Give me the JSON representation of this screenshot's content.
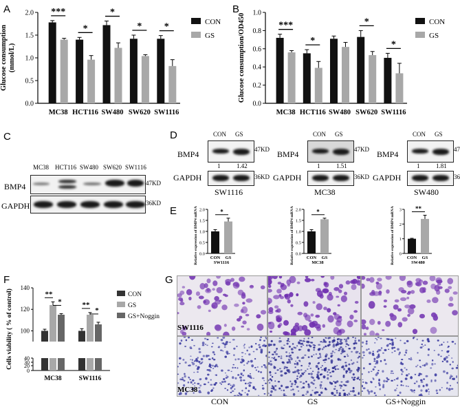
{
  "panels": {
    "A": {
      "label": "A"
    },
    "B": {
      "label": "B"
    },
    "C": {
      "label": "C"
    },
    "D": {
      "label": "D"
    },
    "E": {
      "label": "E"
    },
    "F": {
      "label": "F"
    },
    "G": {
      "label": "G"
    }
  },
  "chart_data": [
    {
      "id": "A",
      "type": "bar",
      "ylabel": "Glucose consumption\n(mmol/L)",
      "ylim": [
        0,
        2.0
      ],
      "yticks": [
        "0.0",
        "0.5",
        "1.0",
        "1.5",
        "2.0"
      ],
      "categories": [
        "MC38",
        "HCT116",
        "SW480",
        "SW620",
        "SW1116"
      ],
      "series": [
        {
          "name": "CON",
          "color": "#111111",
          "values": [
            1.78,
            1.4,
            1.72,
            1.42,
            1.42
          ],
          "errors": [
            0.04,
            0.05,
            0.09,
            0.08,
            0.07
          ]
        },
        {
          "name": "GS",
          "color": "#a8a8a8",
          "values": [
            1.4,
            0.96,
            1.22,
            1.04,
            0.82
          ],
          "errors": [
            0.03,
            0.09,
            0.11,
            0.03,
            0.14
          ]
        }
      ],
      "significance": [
        "***",
        "*",
        "*",
        "*",
        "*"
      ],
      "legend": "right"
    },
    {
      "id": "B",
      "type": "bar",
      "ylabel": "Glucose consumption/OD450",
      "ylim": [
        0,
        1.0
      ],
      "yticks": [
        "0.0",
        "0.2",
        "0.4",
        "0.6",
        "0.8",
        "1.0"
      ],
      "categories": [
        "MC38",
        "HCT116",
        "SW480",
        "SW620",
        "SW1116"
      ],
      "series": [
        {
          "name": "CON",
          "color": "#111111",
          "values": [
            0.72,
            0.55,
            0.71,
            0.73,
            0.5
          ],
          "errors": [
            0.04,
            0.04,
            0.03,
            0.07,
            0.05
          ]
        },
        {
          "name": "GS",
          "color": "#a8a8a8",
          "values": [
            0.56,
            0.39,
            0.62,
            0.53,
            0.33
          ],
          "errors": [
            0.02,
            0.07,
            0.05,
            0.04,
            0.11
          ]
        }
      ],
      "significance": [
        "***",
        "*",
        "",
        "*",
        "*"
      ],
      "legend": "right"
    },
    {
      "id": "E1",
      "type": "bar",
      "ylabel": "Relative expression of BMP4 mRNA",
      "xlabel": "SW1116",
      "ylim": [
        0,
        2.0
      ],
      "yticks": [
        "0.0",
        "0.5",
        "1.0",
        "1.5",
        "2.0"
      ],
      "categories": [
        "CON",
        "GS"
      ],
      "series": [
        {
          "values": [
            1.0,
            1.45
          ],
          "errors": [
            0.08,
            0.15
          ],
          "colors": [
            "#111111",
            "#a8a8a8"
          ]
        }
      ],
      "significance": [
        "*"
      ]
    },
    {
      "id": "E2",
      "type": "bar",
      "ylabel": "Relative expression of BMP4 mRNA",
      "xlabel": "MC38",
      "ylim": [
        0,
        2.0
      ],
      "yticks": [
        "0.0",
        "0.5",
        "1.0",
        "1.5",
        "2.0"
      ],
      "categories": [
        "CON",
        "GS"
      ],
      "series": [
        {
          "values": [
            1.0,
            1.55
          ],
          "errors": [
            0.08,
            0.05
          ],
          "colors": [
            "#111111",
            "#a8a8a8"
          ]
        }
      ],
      "significance": [
        "*"
      ]
    },
    {
      "id": "E3",
      "type": "bar",
      "ylabel": "Relative expression of BMP4 mRNA",
      "xlabel": "SW480",
      "ylim": [
        0,
        3
      ],
      "yticks": [
        "0",
        "1",
        "2",
        "3"
      ],
      "categories": [
        "CON",
        "GS"
      ],
      "series": [
        {
          "values": [
            1.0,
            2.35
          ],
          "errors": [
            0.03,
            0.25
          ],
          "colors": [
            "#111111",
            "#a8a8a8"
          ]
        }
      ],
      "significance": [
        "**"
      ]
    },
    {
      "id": "F",
      "type": "bar",
      "ylabel": "Cells viability ( % of control)",
      "yticks_top": [
        "100",
        "120",
        "140"
      ],
      "yticks_bottom": [
        "0",
        "20",
        "30",
        "40"
      ],
      "ylim_top": [
        90,
        140
      ],
      "categories": [
        "MC38",
        "SW1116"
      ],
      "series": [
        {
          "name": "CON",
          "color": "#333333",
          "values": [
            100,
            100
          ],
          "errors": [
            1.5,
            2
          ]
        },
        {
          "name": "GS",
          "color": "#a8a8a8",
          "values": [
            124,
            115
          ],
          "errors": [
            3,
            2
          ]
        },
        {
          "name": "GS+Noggin",
          "color": "#666666",
          "values": [
            115,
            106
          ],
          "errors": [
            1,
            2
          ]
        }
      ],
      "significance": [
        [
          "**",
          "*"
        ],
        [
          "**",
          "*"
        ]
      ],
      "legend": "right"
    }
  ],
  "blot_C": {
    "lanes": [
      "MC38",
      "HCT116",
      "SW480",
      "SW620",
      "SW1116"
    ],
    "rows": [
      "BMP4",
      "GAPDH"
    ],
    "sizes": [
      "47KD",
      "36KD"
    ]
  },
  "blot_D": [
    {
      "cell": "SW1116",
      "lanes": [
        "CON",
        "GS"
      ],
      "ratio": [
        "1",
        "1.42"
      ]
    },
    {
      "cell": "MC38",
      "lanes": [
        "CON",
        "GS"
      ],
      "ratio": [
        "1",
        "1.51"
      ]
    },
    {
      "cell": "SW480",
      "lanes": [
        "CON",
        "GS"
      ],
      "ratio": [
        "1",
        "1.81"
      ]
    }
  ],
  "blot_D_rows": [
    "BMP4",
    "GAPDH"
  ],
  "blot_D_sizes": [
    "47KD",
    "36KD"
  ],
  "panel_G": {
    "rows": [
      "SW1116",
      "MC38"
    ],
    "columns": [
      "CON",
      "GS",
      "GS+Noggin"
    ]
  }
}
